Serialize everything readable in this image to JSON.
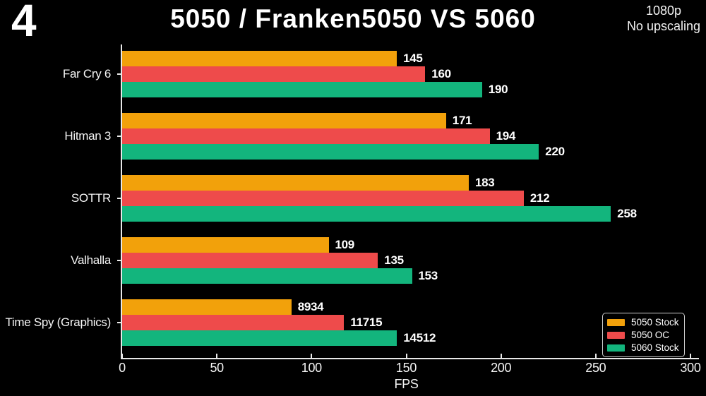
{
  "header": {
    "slide_number": "4",
    "note_lines": [
      "1080p",
      "No upscaling"
    ]
  },
  "chart_data": {
    "type": "bar",
    "orientation": "horizontal",
    "title": "5050 / Franken5050 VS 5060",
    "xlabel": "FPS",
    "xlim": [
      0,
      300
    ],
    "xticks": [
      0,
      50,
      100,
      150,
      200,
      250,
      300
    ],
    "grid": false,
    "legend_position": "lower-right",
    "categories": [
      "Far Cry 6",
      "Hitman 3",
      "SOTTR",
      "Valhalla",
      "Time Spy (Graphics)"
    ],
    "series": [
      {
        "name": "5050 Stock",
        "color": "#F2A10B",
        "values": [
          145,
          171,
          183,
          109,
          8934
        ]
      },
      {
        "name": "5050 OC",
        "color": "#EE4B4B",
        "values": [
          160,
          194,
          212,
          135,
          11715
        ]
      },
      {
        "name": "5060 Stock",
        "color": "#13B57D",
        "values": [
          190,
          220,
          258,
          153,
          14512
        ]
      }
    ],
    "category_plot_divisor": [
      1,
      1,
      1,
      1,
      100
    ]
  },
  "colors": {
    "background": "#000000",
    "text": "#FFFFFF",
    "axis": "#E8E8E8",
    "legend_border": "#CFCFCF"
  }
}
